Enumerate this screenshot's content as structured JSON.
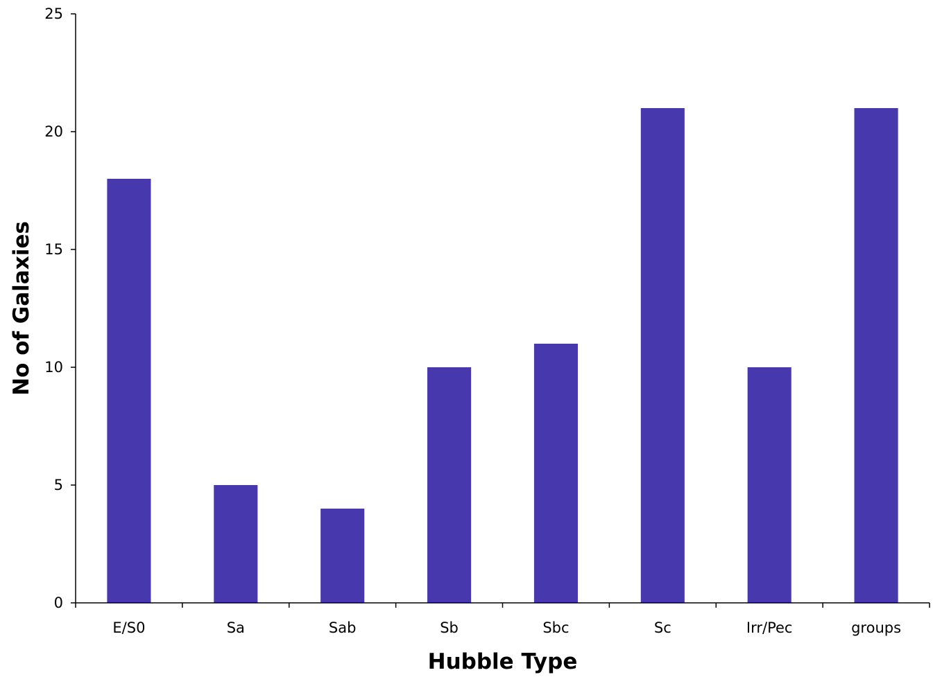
{
  "chart_data": {
    "type": "bar",
    "title": "",
    "xlabel": "Hubble Type",
    "ylabel": "No of Galaxies",
    "categories": [
      "E/S0",
      "Sa",
      "Sab",
      "Sb",
      "Sbc",
      "Sc",
      "Irr/Pec",
      "groups"
    ],
    "values": [
      18,
      5,
      4,
      10,
      11,
      21,
      10,
      21
    ],
    "ylim": [
      0,
      25
    ],
    "yticks": [
      "0",
      "5",
      "10",
      "15",
      "20",
      "25"
    ],
    "grid": false,
    "legend": "none",
    "bar_color": "#4739ad"
  }
}
